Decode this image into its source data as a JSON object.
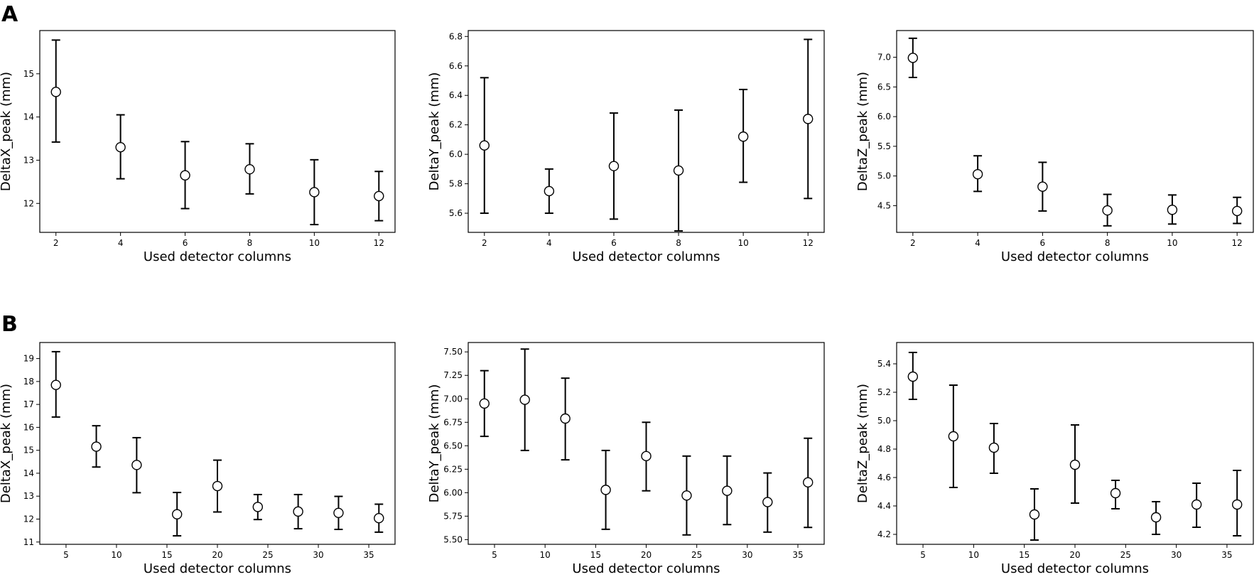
{
  "panel_labels": [
    "A",
    "B"
  ],
  "chart_data": [
    {
      "type": "scatter",
      "panel": "A",
      "xlabel": "Used detector columns",
      "ylabel": "DeltaX_peak (mm)",
      "xlim": [
        1.5,
        12.5
      ],
      "xticks": [
        2,
        4,
        6,
        8,
        10,
        12
      ],
      "ylim": [
        11.33,
        16.0
      ],
      "yticks": [
        12,
        13,
        14,
        15
      ],
      "points": [
        {
          "x": 2,
          "y": 14.58,
          "err_low": 13.42,
          "err_high": 15.78
        },
        {
          "x": 4,
          "y": 13.3,
          "err_low": 12.57,
          "err_high": 14.05
        },
        {
          "x": 6,
          "y": 12.65,
          "err_low": 11.88,
          "err_high": 13.43
        },
        {
          "x": 8,
          "y": 12.79,
          "err_low": 12.22,
          "err_high": 13.38
        },
        {
          "x": 10,
          "y": 12.26,
          "err_low": 11.51,
          "err_high": 13.01
        },
        {
          "x": 12,
          "y": 12.17,
          "err_low": 11.6,
          "err_high": 12.74
        }
      ]
    },
    {
      "type": "scatter",
      "panel": "A",
      "xlabel": "Used detector columns",
      "ylabel": "DeltaY_peak (mm)",
      "xlim": [
        1.5,
        12.5
      ],
      "xticks": [
        2,
        4,
        6,
        8,
        10,
        12
      ],
      "ylim": [
        5.47,
        6.84
      ],
      "yticks": [
        5.6,
        5.8,
        6.0,
        6.2,
        6.4,
        6.6,
        6.8
      ],
      "tick_format": 1,
      "points": [
        {
          "x": 2,
          "y": 6.06,
          "err_low": 5.6,
          "err_high": 6.52
        },
        {
          "x": 4,
          "y": 5.75,
          "err_low": 5.6,
          "err_high": 5.9
        },
        {
          "x": 6,
          "y": 5.92,
          "err_low": 5.56,
          "err_high": 6.28
        },
        {
          "x": 8,
          "y": 5.89,
          "err_low": 5.48,
          "err_high": 6.3
        },
        {
          "x": 10,
          "y": 6.12,
          "err_low": 5.81,
          "err_high": 6.44
        },
        {
          "x": 12,
          "y": 6.24,
          "err_low": 5.7,
          "err_high": 6.78
        }
      ]
    },
    {
      "type": "scatter",
      "panel": "A",
      "xlabel": "Used detector columns",
      "ylabel": "DeltaZ_peak (mm)",
      "xlim": [
        1.5,
        12.5
      ],
      "xticks": [
        2,
        4,
        6,
        8,
        10,
        12
      ],
      "ylim": [
        4.05,
        7.45
      ],
      "yticks": [
        4.5,
        5.0,
        5.5,
        6.0,
        6.5,
        7.0
      ],
      "tick_format": 1,
      "points": [
        {
          "x": 2,
          "y": 6.99,
          "err_low": 6.66,
          "err_high": 7.32
        },
        {
          "x": 4,
          "y": 5.03,
          "err_low": 4.74,
          "err_high": 5.34
        },
        {
          "x": 6,
          "y": 4.82,
          "err_low": 4.41,
          "err_high": 5.23
        },
        {
          "x": 8,
          "y": 4.42,
          "err_low": 4.16,
          "err_high": 4.69
        },
        {
          "x": 10,
          "y": 4.43,
          "err_low": 4.19,
          "err_high": 4.68
        },
        {
          "x": 12,
          "y": 4.41,
          "err_low": 4.2,
          "err_high": 4.64
        }
      ]
    },
    {
      "type": "scatter",
      "panel": "B",
      "xlabel": "Used detector columns",
      "ylabel": "DeltaX_peak (mm)",
      "xlim": [
        2.4,
        37.6
      ],
      "xticks": [
        5,
        10,
        15,
        20,
        25,
        30,
        35
      ],
      "ylim": [
        10.9,
        19.7
      ],
      "yticks": [
        11,
        12,
        13,
        14,
        15,
        16,
        17,
        18,
        19
      ],
      "points": [
        {
          "x": 4,
          "y": 17.85,
          "err_low": 16.45,
          "err_high": 19.3
        },
        {
          "x": 8,
          "y": 15.16,
          "err_low": 14.27,
          "err_high": 16.07
        },
        {
          "x": 12,
          "y": 14.36,
          "err_low": 13.15,
          "err_high": 15.55
        },
        {
          "x": 16,
          "y": 12.21,
          "err_low": 11.27,
          "err_high": 13.16
        },
        {
          "x": 20,
          "y": 13.44,
          "err_low": 12.31,
          "err_high": 14.57
        },
        {
          "x": 24,
          "y": 12.53,
          "err_low": 11.98,
          "err_high": 13.07
        },
        {
          "x": 28,
          "y": 12.33,
          "err_low": 11.58,
          "err_high": 13.07
        },
        {
          "x": 32,
          "y": 12.27,
          "err_low": 11.55,
          "err_high": 12.99
        },
        {
          "x": 36,
          "y": 12.04,
          "err_low": 11.43,
          "err_high": 12.65
        }
      ]
    },
    {
      "type": "scatter",
      "panel": "B",
      "xlabel": "Used detector columns",
      "ylabel": "DeltaY_peak (mm)",
      "xlim": [
        2.4,
        37.6
      ],
      "xticks": [
        5,
        10,
        15,
        20,
        25,
        30,
        35
      ],
      "ylim": [
        5.45,
        7.6
      ],
      "yticks": [
        5.5,
        5.75,
        6.0,
        6.25,
        6.5,
        6.75,
        7.0,
        7.25,
        7.5
      ],
      "tick_format": 2,
      "points": [
        {
          "x": 4,
          "y": 6.95,
          "err_low": 6.6,
          "err_high": 7.3
        },
        {
          "x": 8,
          "y": 6.99,
          "err_low": 6.45,
          "err_high": 7.53
        },
        {
          "x": 12,
          "y": 6.79,
          "err_low": 6.35,
          "err_high": 7.22
        },
        {
          "x": 16,
          "y": 6.03,
          "err_low": 5.61,
          "err_high": 6.45
        },
        {
          "x": 20,
          "y": 6.39,
          "err_low": 6.02,
          "err_high": 6.75
        },
        {
          "x": 24,
          "y": 5.97,
          "err_low": 5.55,
          "err_high": 6.39
        },
        {
          "x": 28,
          "y": 6.02,
          "err_low": 5.66,
          "err_high": 6.39
        },
        {
          "x": 32,
          "y": 5.9,
          "err_low": 5.58,
          "err_high": 6.21
        },
        {
          "x": 36,
          "y": 6.11,
          "err_low": 5.63,
          "err_high": 6.58
        }
      ]
    },
    {
      "type": "scatter",
      "panel": "B",
      "xlabel": "Used detector columns",
      "ylabel": "DeltaZ_peak (mm)",
      "xlim": [
        2.4,
        37.6
      ],
      "xticks": [
        5,
        10,
        15,
        20,
        25,
        30,
        35
      ],
      "ylim": [
        4.13,
        5.55
      ],
      "yticks": [
        4.2,
        4.4,
        4.6,
        4.8,
        5.0,
        5.2,
        5.4
      ],
      "tick_format": 1,
      "points": [
        {
          "x": 4,
          "y": 5.31,
          "err_low": 5.15,
          "err_high": 5.48
        },
        {
          "x": 8,
          "y": 4.89,
          "err_low": 4.53,
          "err_high": 5.25
        },
        {
          "x": 12,
          "y": 4.81,
          "err_low": 4.63,
          "err_high": 4.98
        },
        {
          "x": 16,
          "y": 4.34,
          "err_low": 4.16,
          "err_high": 4.52
        },
        {
          "x": 20,
          "y": 4.69,
          "err_low": 4.42,
          "err_high": 4.97
        },
        {
          "x": 24,
          "y": 4.49,
          "err_low": 4.38,
          "err_high": 4.58
        },
        {
          "x": 28,
          "y": 4.32,
          "err_low": 4.2,
          "err_high": 4.43
        },
        {
          "x": 32,
          "y": 4.41,
          "err_low": 4.25,
          "err_high": 4.56
        },
        {
          "x": 36,
          "y": 4.41,
          "err_low": 4.19,
          "err_high": 4.65
        }
      ]
    }
  ]
}
